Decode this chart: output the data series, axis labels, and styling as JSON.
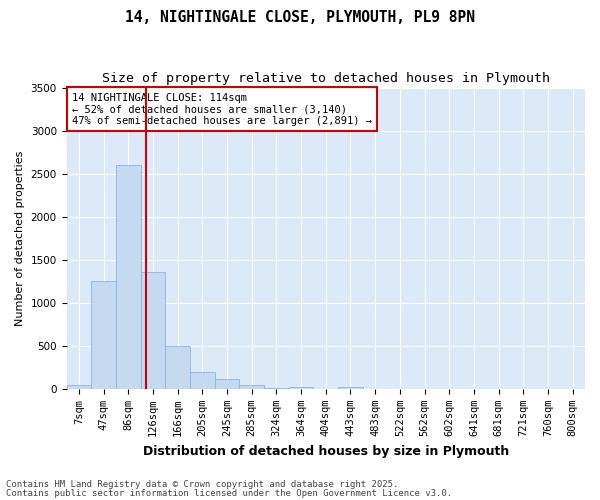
{
  "title": "14, NIGHTINGALE CLOSE, PLYMOUTH, PL9 8PN",
  "subtitle": "Size of property relative to detached houses in Plymouth",
  "xlabel": "Distribution of detached houses by size in Plymouth",
  "ylabel": "Number of detached properties",
  "categories": [
    "7sqm",
    "47sqm",
    "86sqm",
    "126sqm",
    "166sqm",
    "205sqm",
    "245sqm",
    "285sqm",
    "324sqm",
    "364sqm",
    "404sqm",
    "443sqm",
    "483sqm",
    "522sqm",
    "562sqm",
    "602sqm",
    "641sqm",
    "681sqm",
    "721sqm",
    "760sqm",
    "800sqm"
  ],
  "values": [
    50,
    1250,
    2600,
    1360,
    500,
    200,
    110,
    50,
    10,
    25,
    5,
    25,
    3,
    3,
    2,
    2,
    2,
    2,
    2,
    2,
    2
  ],
  "bar_color": "#c5d9f1",
  "bar_edge_color": "#8ab4e0",
  "vline_color": "#cc0000",
  "vline_x": 2.72,
  "annotation_text": "14 NIGHTINGALE CLOSE: 114sqm\n← 52% of detached houses are smaller (3,140)\n47% of semi-detached houses are larger (2,891) →",
  "annotation_box_facecolor": "#ffffff",
  "annotation_box_edgecolor": "#cc0000",
  "ylim": [
    0,
    3500
  ],
  "yticks": [
    0,
    500,
    1000,
    1500,
    2000,
    2500,
    3000,
    3500
  ],
  "fig_facecolor": "#ffffff",
  "ax_facecolor": "#dce9f8",
  "grid_color": "#ffffff",
  "footer_line1": "Contains HM Land Registry data © Crown copyright and database right 2025.",
  "footer_line2": "Contains public sector information licensed under the Open Government Licence v3.0.",
  "title_fontsize": 10.5,
  "subtitle_fontsize": 9.5,
  "xlabel_fontsize": 9,
  "ylabel_fontsize": 8,
  "tick_fontsize": 7.5,
  "annot_fontsize": 7.5,
  "footer_fontsize": 6.5
}
